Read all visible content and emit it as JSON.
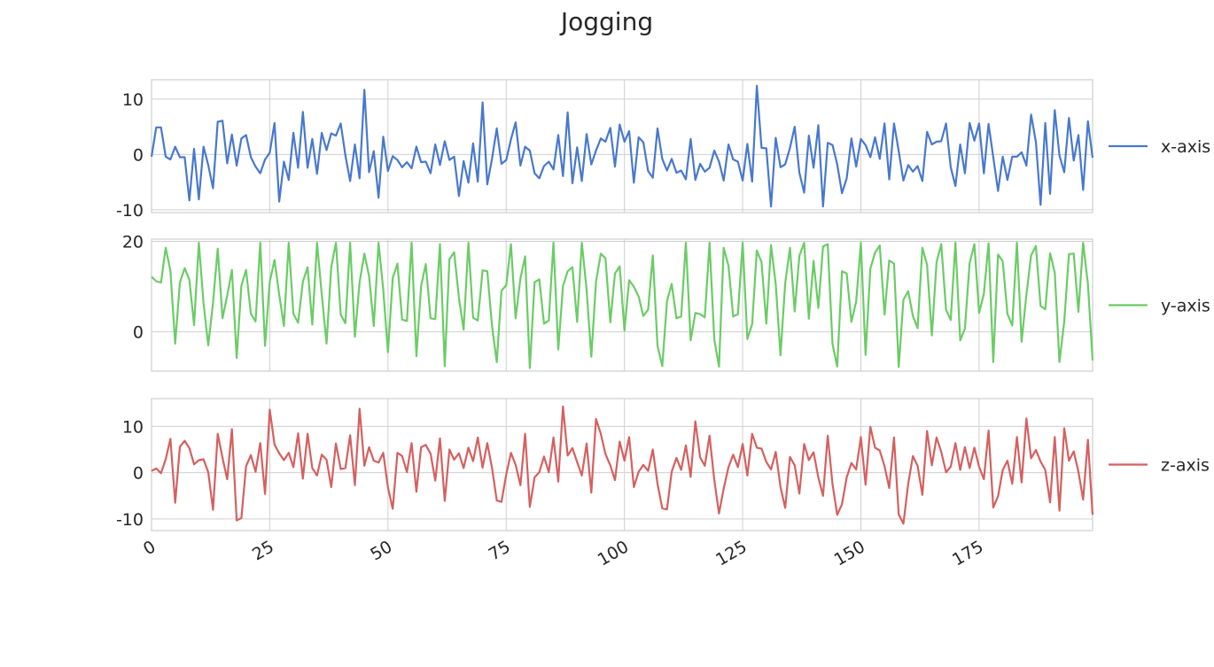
{
  "chart_data": {
    "type": "line",
    "title": "Jogging",
    "x": {
      "start": 0,
      "end": 199,
      "step": 1,
      "ticks": [
        0,
        25,
        50,
        75,
        100,
        125,
        150,
        175
      ],
      "tick_labels": [
        "0",
        "25",
        "50",
        "75",
        "100",
        "125",
        "150",
        "175"
      ],
      "xlim": [
        0,
        199
      ]
    },
    "grid": true,
    "legend": "right of each panel",
    "panels": [
      {
        "series_name": "x-axis",
        "color": "#4878cf",
        "ylim": [
          -10.5,
          13.5
        ],
        "yticks": [
          10,
          0,
          -10
        ],
        "ytick_labels": [
          "10",
          "0",
          "-10"
        ],
        "values": [
          -0.4,
          4.9,
          4.9,
          -0.4,
          -0.9,
          1.4,
          -0.5,
          -0.5,
          -8.3,
          1.0,
          -8.1,
          1.4,
          -1.9,
          -6.1,
          5.9,
          6.1,
          -1.6,
          3.6,
          -2.0,
          2.9,
          3.5,
          -0.5,
          -2.2,
          -3.4,
          -0.9,
          0.3,
          5.7,
          -8.5,
          -1.3,
          -4.6,
          3.9,
          -2.4,
          7.7,
          -2.4,
          2.8,
          -3.5,
          3.9,
          0.8,
          3.8,
          3.4,
          5.6,
          -0.2,
          -4.8,
          1.8,
          -4.3,
          11.7,
          -3.2,
          0.6,
          -7.8,
          3.2,
          -3.0,
          -0.3,
          -1.0,
          -2.3,
          -1.4,
          -2.5,
          1.4,
          -1.4,
          -1.3,
          -3.4,
          1.8,
          -1.9,
          2.4,
          -1.0,
          -0.4,
          -7.5,
          -1.2,
          -5.1,
          2.0,
          -4.9,
          9.4,
          -5.4,
          -0.8,
          4.7,
          -1.7,
          -1.0,
          2.7,
          5.8,
          -2.0,
          1.4,
          0.7,
          -3.4,
          -4.3,
          -2.1,
          -1.3,
          -2.7,
          3.5,
          -3.9,
          7.6,
          -5.2,
          1.3,
          -4.8,
          3.7,
          -1.8,
          0.7,
          2.9,
          2.3,
          4.8,
          -2.2,
          5.4,
          2.3,
          4.2,
          -5.1,
          3.1,
          2.2,
          -3.0,
          -4.2,
          4.7,
          -0.8,
          -2.9,
          -0.8,
          -3.3,
          -2.9,
          -4.5,
          2.8,
          -4.6,
          -1.7,
          -3.1,
          -2.4,
          0.7,
          -1.3,
          -4.7,
          1.8,
          -0.9,
          -1.3,
          -4.7,
          1.9,
          -4.9,
          12.4,
          1.2,
          1.1,
          -9.4,
          3.0,
          -2.3,
          -1.8,
          1.2,
          5.0,
          -3.3,
          -6.9,
          3.4,
          -2.4,
          5.3,
          -9.4,
          2.1,
          1.7,
          -1.8,
          -7.0,
          -4.3,
          2.9,
          -2.2,
          2.8,
          1.7,
          -0.5,
          3.1,
          -0.8,
          5.6,
          -4.5,
          5.6,
          0.6,
          -4.7,
          -1.9,
          -3.1,
          -2.1,
          -4.8,
          4.1,
          1.8,
          2.3,
          2.4,
          5.6,
          -2.3,
          -5.7,
          1.8,
          -3.4,
          5.7,
          2.5,
          5.6,
          -3.4,
          5.5,
          -0.5,
          -6.6,
          -0.4,
          -4.6,
          -0.4,
          -0.4,
          0.4,
          -2.0,
          7.2,
          2.3,
          -9.1,
          5.7,
          -7.1,
          8.0,
          -0.2,
          -3.2,
          6.6,
          -1.1,
          3.5,
          -6.4,
          6.0,
          -0.6
        ]
      },
      {
        "series_name": "y-axis",
        "color": "#6acc65",
        "ylim": [
          -8.7,
          20.5
        ],
        "yticks": [
          20,
          0
        ],
        "ytick_labels": [
          "20",
          "0"
        ],
        "values": [
          12.2,
          11.2,
          10.9,
          18.6,
          13.5,
          -2.6,
          10.9,
          14.1,
          11.5,
          1.5,
          19.7,
          6.3,
          -3.0,
          6.4,
          18.4,
          3.0,
          8.0,
          13.7,
          -5.8,
          10.2,
          13.7,
          4.0,
          2.3,
          19.7,
          -3.1,
          11.1,
          15.9,
          8.2,
          1.3,
          19.7,
          4.0,
          2.0,
          11.1,
          14.3,
          1.6,
          19.7,
          8.3,
          -2.6,
          14.3,
          19.7,
          3.8,
          1.9,
          19.7,
          -1.1,
          11.0,
          17.3,
          12.3,
          1.3,
          19.7,
          9.3,
          -4.5,
          11.9,
          15.1,
          2.7,
          2.4,
          19.7,
          -5.4,
          10.1,
          15.0,
          3.0,
          2.8,
          19.4,
          -7.6,
          16.1,
          17.6,
          7.5,
          0.5,
          19.7,
          3.1,
          2.5,
          13.6,
          13.4,
          1.4,
          -6.7,
          9.1,
          10.3,
          19.4,
          3.0,
          11.8,
          16.7,
          -8.0,
          11.0,
          11.6,
          1.8,
          2.5,
          19.7,
          -3.9,
          10.1,
          13.4,
          14.3,
          2.2,
          19.7,
          9.3,
          -5.5,
          11.1,
          17.3,
          16.2,
          2.1,
          12.9,
          14.5,
          0.3,
          11.4,
          10.0,
          7.8,
          3.5,
          4.9,
          16.9,
          -3.1,
          -7.6,
          6.8,
          10.6,
          3.0,
          3.4,
          19.7,
          -1.9,
          4.2,
          3.9,
          3.2,
          19.7,
          -1.7,
          -7.7,
          18.6,
          14.6,
          3.4,
          3.9,
          19.7,
          -1.6,
          1.7,
          18.0,
          15.4,
          1.8,
          19.2,
          10.6,
          -5.2,
          10.8,
          18.6,
          4.5,
          16.8,
          19.7,
          2.9,
          15.7,
          5.3,
          18.9,
          19.4,
          -2.7,
          -7.7,
          13.4,
          12.9,
          2.2,
          6.7,
          19.7,
          -5.1,
          14.0,
          17.5,
          19.1,
          3.8,
          15.8,
          15.1,
          -7.8,
          7.1,
          9.0,
          3.5,
          0.8,
          18.6,
          14.8,
          -0.8,
          15.4,
          19.4,
          4.9,
          2.6,
          19.7,
          -1.9,
          0.7,
          15.2,
          19.4,
          4.2,
          8.4,
          19.6,
          -6.7,
          17.1,
          15.6,
          4.0,
          1.4,
          19.7,
          -2.2,
          8.2,
          16.9,
          19.0,
          5.7,
          5.0,
          17.4,
          13.1,
          -6.7,
          2.3,
          17.2,
          17.3,
          4.4,
          19.7,
          10.6,
          -6.3
        ]
      },
      {
        "series_name": "z-axis",
        "color": "#d65f5f",
        "ylim": [
          -12.5,
          16
        ],
        "yticks": [
          10,
          0,
          -10
        ],
        "ytick_labels": [
          "10",
          "0",
          "-10"
        ],
        "values": [
          0.4,
          0.9,
          -0.1,
          2.9,
          7.3,
          -6.5,
          5.6,
          6.9,
          5.3,
          1.8,
          2.7,
          2.9,
          0.1,
          -8.0,
          8.4,
          3.2,
          -1.4,
          9.4,
          -10.3,
          -9.8,
          1.4,
          3.8,
          0.2,
          6.4,
          -4.6,
          13.6,
          6.1,
          4.2,
          2.7,
          4.3,
          1.2,
          8.5,
          -1.3,
          8.4,
          1.0,
          -0.6,
          3.9,
          2.8,
          -3.1,
          6.3,
          0.8,
          1.0,
          8.1,
          -2.7,
          13.8,
          1.5,
          5.5,
          2.6,
          2.2,
          4.3,
          -3.2,
          -7.8,
          4.3,
          3.6,
          0.1,
          6.4,
          -4.1,
          5.5,
          6.0,
          4.1,
          -1.7,
          7.4,
          -6.1,
          5.0,
          2.8,
          4.2,
          1.0,
          5.4,
          2.5,
          7.6,
          1.1,
          6.4,
          1.1,
          -6.0,
          -6.3,
          -0.4,
          4.3,
          1.7,
          -2.7,
          8.4,
          -7.4,
          -1.0,
          0.1,
          3.5,
          0.1,
          7.6,
          -1.9,
          14.3,
          3.7,
          5.3,
          2.3,
          -0.6,
          6.3,
          -4.3,
          11.6,
          8.4,
          4.0,
          1.6,
          -1.6,
          6.7,
          2.6,
          7.7,
          -3.1,
          0.2,
          1.7,
          0.4,
          5.0,
          -2.4,
          -7.7,
          -7.9,
          0.2,
          3.2,
          0.6,
          5.9,
          -0.9,
          11.1,
          3.3,
          1.5,
          8.0,
          -1.6,
          -8.8,
          -3.4,
          1.2,
          3.9,
          1.2,
          6.2,
          -0.6,
          8.4,
          5.4,
          5.2,
          2.3,
          0.7,
          4.5,
          -3.1,
          -7.6,
          3.4,
          1.6,
          -4.5,
          6.2,
          2.7,
          4.4,
          -1.0,
          -5.0,
          8.0,
          -2.5,
          -9.1,
          -6.8,
          -1.0,
          2.1,
          0.7,
          7.7,
          -2.6,
          9.9,
          5.4,
          4.8,
          1.4,
          -3.3,
          7.6,
          -9.0,
          -11.0,
          -2.4,
          3.6,
          1.5,
          -4.8,
          9.0,
          1.6,
          7.6,
          4.5,
          0.1,
          1.3,
          6.4,
          0.6,
          5.5,
          1.0,
          5.4,
          1.3,
          -1.4,
          9.1,
          -7.5,
          -5.1,
          0.6,
          2.6,
          -2.4,
          7.7,
          -2.1,
          11.7,
          3.1,
          4.9,
          2.4,
          0.6,
          -6.4,
          7.7,
          -8.2,
          9.6,
          2.6,
          4.6,
          0.2,
          -5.8,
          7.1,
          -9.1
        ]
      }
    ]
  }
}
